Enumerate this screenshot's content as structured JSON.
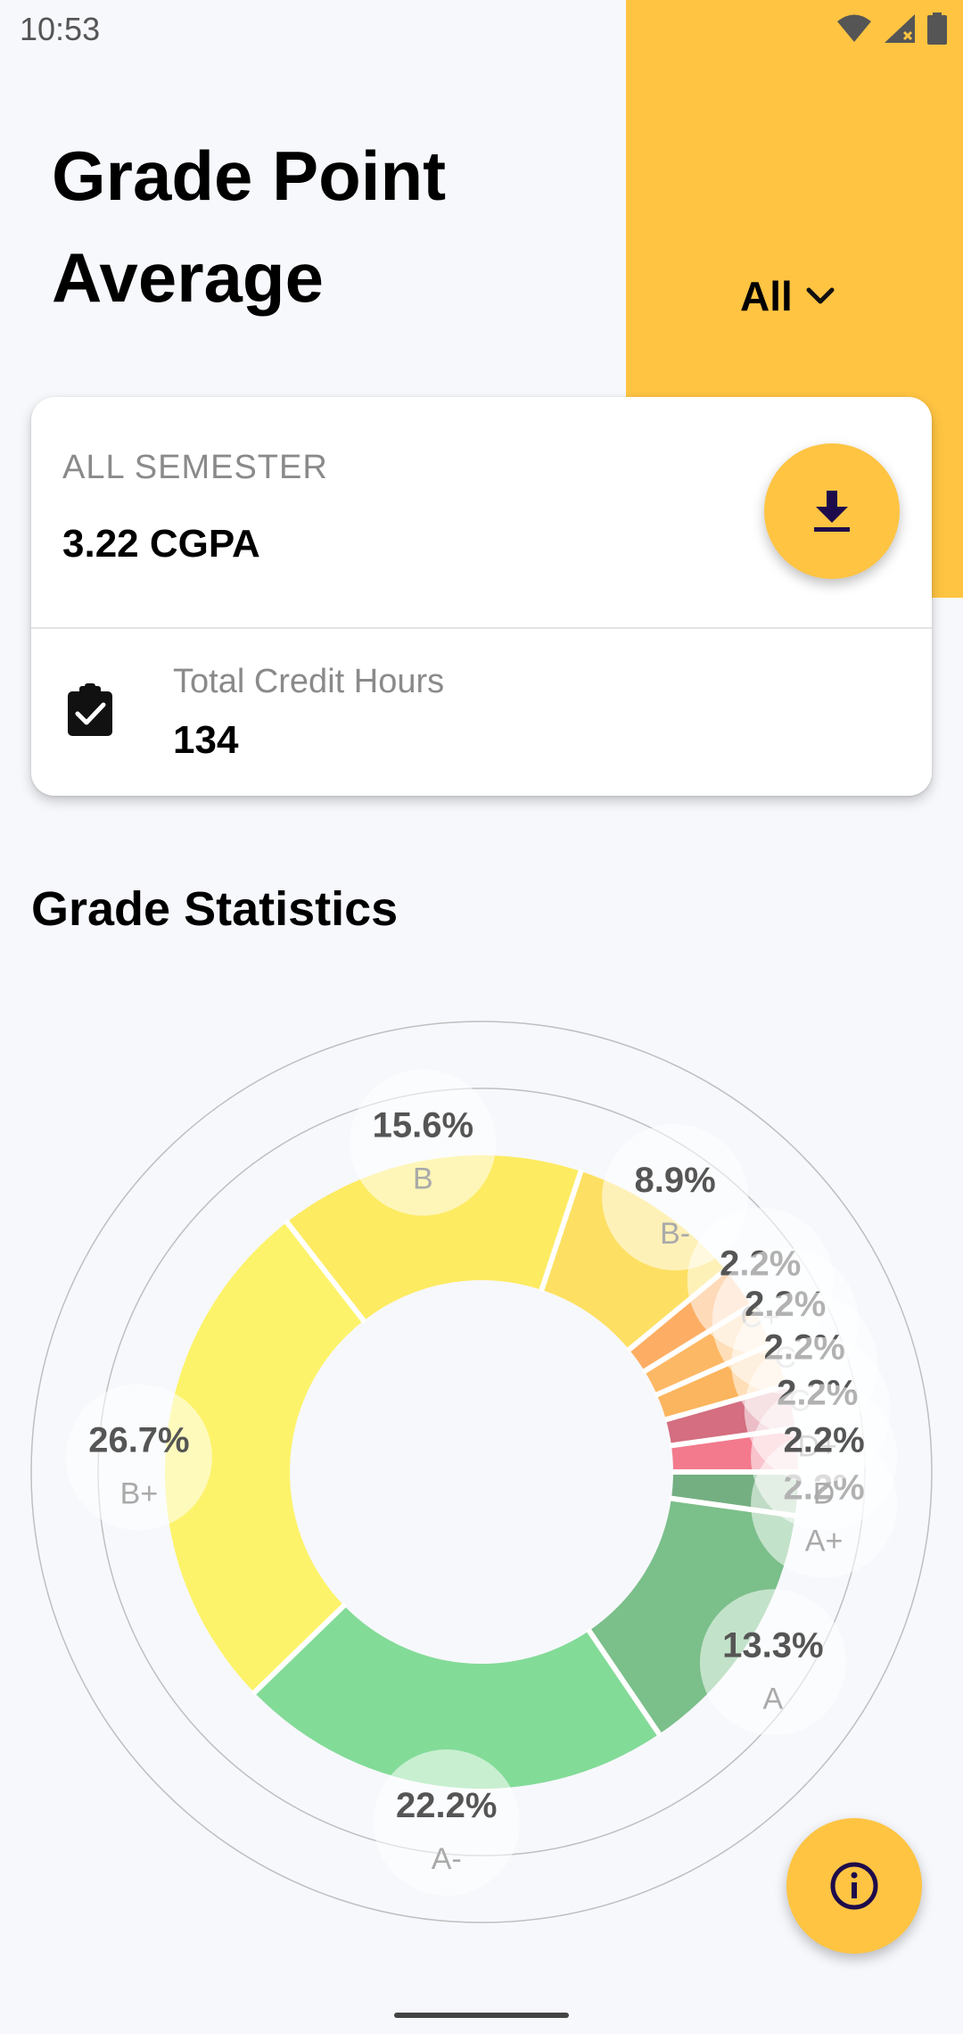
{
  "status_bar": {
    "time": "10:53",
    "icons": [
      "wifi-icon",
      "cell-signal-icon",
      "battery-icon"
    ]
  },
  "header": {
    "title": "Grade Point Average",
    "filter_label": "All",
    "filter_icon": "chevron-down-icon"
  },
  "summary_card": {
    "label": "ALL SEMESTER",
    "value": "3.22 CGPA",
    "download_icon": "download-icon",
    "credit_label": "Total Credit Hours",
    "credit_value": "134",
    "credit_icon": "clipboard-check-icon"
  },
  "section": {
    "title": "Grade Statistics"
  },
  "info_fab": {
    "icon": "info-icon"
  },
  "colors": {
    "accent": "#FFC442",
    "icon_dark": "#1E0B4B"
  },
  "chart_data": {
    "type": "pie",
    "style": "donut",
    "start_angle_deg": 0,
    "direction": "clockwise",
    "slices": [
      {
        "label": "A+",
        "percent_label": "2.2%",
        "value": 2.2,
        "color": "#74AF82"
      },
      {
        "label": "A",
        "percent_label": "13.3%",
        "value": 13.3,
        "color": "#7BBF8A"
      },
      {
        "label": "A-",
        "percent_label": "22.2%",
        "value": 22.2,
        "color": "#83DB98"
      },
      {
        "label": "B+",
        "percent_label": "26.7%",
        "value": 26.7,
        "color": "#FDF36A"
      },
      {
        "label": "B",
        "percent_label": "15.6%",
        "value": 15.6,
        "color": "#FDEB62"
      },
      {
        "label": "B-",
        "percent_label": "8.9%",
        "value": 8.9,
        "color": "#FDE063"
      },
      {
        "label": "C+",
        "percent_label": "2.2%",
        "value": 2.2,
        "color": "#FDAE64"
      },
      {
        "label": "C",
        "percent_label": "2.2%",
        "value": 2.2,
        "color": "#FDB865"
      },
      {
        "label": "C-",
        "percent_label": "2.2%",
        "value": 2.2,
        "color": "#FBB55E"
      },
      {
        "label": "D+",
        "percent_label": "2.2%",
        "value": 2.2,
        "color": "#D46E80"
      },
      {
        "label": "D",
        "percent_label": "2.2%",
        "value": 2.2,
        "color": "#F27A8C"
      }
    ]
  }
}
